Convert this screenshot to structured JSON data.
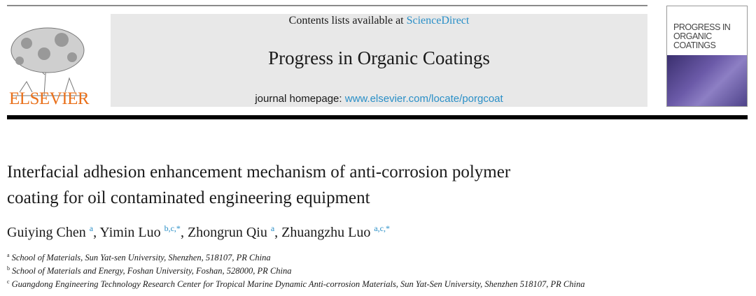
{
  "header": {
    "publisher_logo": "ELSEVIER",
    "contents_prefix": "Contents lists available at ",
    "contents_link": "ScienceDirect",
    "journal_title": "Progress in Organic Coatings",
    "homepage_prefix": "journal homepage: ",
    "homepage_link": "www.elsevier.com/locate/porgcoat",
    "cover_text": "PROGRESS IN ORGANIC COATINGS",
    "link_color": "#2a8fc7",
    "logo_color": "#e9711c"
  },
  "article": {
    "title_line1": "Interfacial adhesion enhancement mechanism of anti-corrosion polymer",
    "title_line2": "coating for oil contaminated engineering equipment",
    "authors": [
      {
        "name": "Guiying Chen",
        "sup": "a"
      },
      {
        "name": "Yimin Luo",
        "sup": "b,c,*"
      },
      {
        "name": "Zhongrun Qiu",
        "sup": "a"
      },
      {
        "name": "Zhuangzhu Luo",
        "sup": "a,c,*"
      }
    ],
    "affiliations": [
      {
        "label": "a",
        "text": "School of Materials, Sun Yat-sen University, Shenzhen, 518107, PR China"
      },
      {
        "label": "b",
        "text": "School of Materials and Energy, Foshan University, Foshan, 528000, PR China"
      },
      {
        "label": "c",
        "text": "Guangdong Engineering Technology Research Center for Tropical Marine Dynamic Anti-corrosion Materials, Sun Yat-Sen University, Shenzhen 518107, PR China"
      }
    ]
  }
}
